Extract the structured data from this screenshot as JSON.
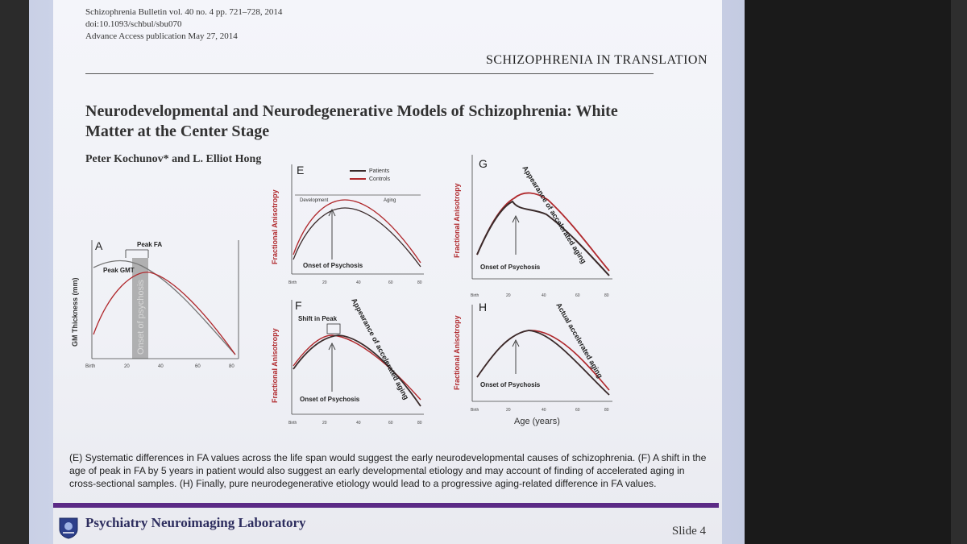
{
  "citation": {
    "journal_line": "Schizophrenia Bulletin vol. 40 no. 4 pp. 721–728, 2014",
    "doi_line": "doi:10.1093/schbul/sbu070",
    "access_line": "Advance Access publication May 27, 2014"
  },
  "section_heading": "SCHIZOPHRENIA IN TRANSLATION",
  "paper": {
    "title_line1": "Neurodevelopmental and Neurodegenerative Models of Schizophrenia: White",
    "title_line2": "Matter at the Center Stage",
    "authors": "Peter Kochunov* and L. Elliot Hong"
  },
  "figure": {
    "panel_a": {
      "letter": "A",
      "ylabel": "GM Thickness (mm)",
      "peak_fa_label": "Peak FA",
      "peak_gmt_label": "Peak GMT",
      "onset_band_label": "Onset of psychosis",
      "x_ticks": [
        "Birth",
        "20",
        "40",
        "60",
        "80"
      ]
    },
    "panel_e": {
      "letter": "E",
      "ylabel": "Fractional Anisotropy",
      "legend": [
        "Patients",
        "Controls"
      ],
      "development_label": "Development",
      "aging_label": "Aging",
      "onset_label": "Onset of Psychosis",
      "x_ticks": [
        "Birth",
        "20",
        "40",
        "60",
        "80"
      ]
    },
    "panel_f": {
      "letter": "F",
      "ylabel": "Fractional Anisotropy",
      "shift_label": "Shift in Peak",
      "rotated_label": "Appearance of accelerated aging",
      "onset_label": "Onset of Psychosis",
      "x_ticks": [
        "Birth",
        "20",
        "40",
        "60",
        "80"
      ]
    },
    "panel_g": {
      "letter": "G",
      "ylabel": "Fractional Anisotropy",
      "rotated_label": "Appearance of accelerated aging",
      "onset_label": "Onset of Psychosis",
      "x_ticks": [
        "Birth",
        "20",
        "40",
        "60",
        "80"
      ]
    },
    "panel_h": {
      "letter": "H",
      "ylabel": "Fractional Anisotropy",
      "rotated_label": "Actual accelerated aging",
      "onset_label": "Onset of Psychosis",
      "xlabel": "Age (years)",
      "x_ticks": [
        "Birth",
        "20",
        "40",
        "60",
        "80"
      ]
    }
  },
  "caption": "(E) Systematic differences in FA values across the life span would suggest the early neurodevelopmental causes of  schizophrenia. (F) A shift in the age of peak in FA by 5 years in patient would also suggest an early developmental etiology and may account of finding of accelerated aging in cross-sectional samples. (H) Finally, pure neurodegenerative etiology would lead to a progressive aging-related difference in FA values.",
  "footer": {
    "lab_name": "Psychiatry Neuroimaging Laboratory",
    "slide_number": "Slide 4"
  },
  "colors": {
    "patients": "#3a2a2a",
    "controls": "#b0282c",
    "brand_purple": "#5b2a86"
  }
}
